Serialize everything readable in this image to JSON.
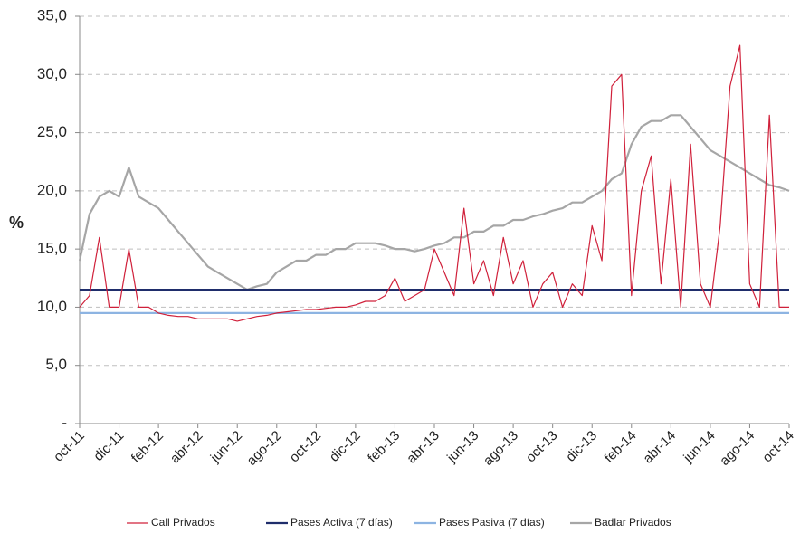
{
  "chart_data": {
    "type": "line",
    "y_label": "%",
    "categories": [
      "oct-11",
      null,
      null,
      null,
      "dic-11",
      null,
      null,
      null,
      "feb-12",
      null,
      null,
      null,
      "abr-12",
      null,
      null,
      null,
      "jun-12",
      null,
      null,
      null,
      "ago-12",
      null,
      null,
      null,
      "oct-12",
      null,
      null,
      null,
      "dic-12",
      null,
      null,
      null,
      "feb-13",
      null,
      null,
      null,
      "abr-13",
      null,
      null,
      null,
      "jun-13",
      null,
      null,
      null,
      "ago-13",
      null,
      null,
      null,
      "oct-13",
      null,
      null,
      null,
      "dic-13",
      null,
      null,
      null,
      "feb-14",
      null,
      null,
      null,
      "abr-14",
      null,
      null,
      null,
      "jun-14",
      null,
      null,
      null,
      "ago-14",
      null,
      null,
      null,
      "oct-14"
    ],
    "ylim": [
      0,
      35
    ],
    "yticks": [
      {
        "value": 0,
        "label": "-"
      },
      {
        "value": 5,
        "label": "5,0"
      },
      {
        "value": 10,
        "label": "10,0"
      },
      {
        "value": 15,
        "label": "15,0"
      },
      {
        "value": 20,
        "label": "20,0"
      },
      {
        "value": 25,
        "label": "25,0"
      },
      {
        "value": 30,
        "label": "30,0"
      },
      {
        "value": 35,
        "label": "35,0"
      }
    ],
    "grid": true,
    "series": [
      {
        "name": "Call Privados",
        "color": "#d0203a",
        "width": 1.2,
        "values": [
          10,
          11,
          16,
          10,
          10,
          15,
          10,
          10,
          9.5,
          9.3,
          9.2,
          9.2,
          9,
          9,
          9,
          9,
          8.8,
          9,
          9.2,
          9.3,
          9.5,
          9.6,
          9.7,
          9.8,
          9.8,
          9.9,
          10,
          10,
          10.2,
          10.5,
          10.5,
          11,
          12.5,
          10.5,
          11,
          11.5,
          15,
          13,
          11,
          18.5,
          12,
          14,
          11,
          16,
          12,
          14,
          10,
          12,
          13,
          10,
          12,
          11,
          17,
          14,
          29,
          30,
          11,
          20,
          23,
          12,
          21,
          10,
          24,
          12,
          10,
          17,
          29,
          32.5,
          12,
          10,
          26.5,
          10,
          10
        ]
      },
      {
        "name": "Pases Activa (7 días)",
        "color": "#1f2d6b",
        "width": 2.2,
        "values": [
          11.5,
          11.5,
          11.5,
          11.5,
          11.5,
          11.5,
          11.5,
          11.5,
          11.5,
          11.5,
          11.5,
          11.5,
          11.5,
          11.5,
          11.5,
          11.5,
          11.5,
          11.5,
          11.5,
          11.5,
          11.5,
          11.5,
          11.5,
          11.5,
          11.5,
          11.5,
          11.5,
          11.5,
          11.5,
          11.5,
          11.5,
          11.5,
          11.5,
          11.5,
          11.5,
          11.5,
          11.5,
          11.5,
          11.5,
          11.5,
          11.5,
          11.5,
          11.5,
          11.5,
          11.5,
          11.5,
          11.5,
          11.5,
          11.5,
          11.5,
          11.5,
          11.5,
          11.5,
          11.5,
          11.5,
          11.5,
          11.5,
          11.5,
          11.5,
          11.5,
          11.5,
          11.5,
          11.5,
          11.5,
          11.5,
          11.5,
          11.5,
          11.5,
          11.5,
          11.5,
          11.5,
          11.5,
          11.5
        ]
      },
      {
        "name": "Pases Pasiva (7 días)",
        "color": "#8db4e2",
        "width": 2.2,
        "values": [
          9.5,
          9.5,
          9.5,
          9.5,
          9.5,
          9.5,
          9.5,
          9.5,
          9.5,
          9.5,
          9.5,
          9.5,
          9.5,
          9.5,
          9.5,
          9.5,
          9.5,
          9.5,
          9.5,
          9.5,
          9.5,
          9.5,
          9.5,
          9.5,
          9.5,
          9.5,
          9.5,
          9.5,
          9.5,
          9.5,
          9.5,
          9.5,
          9.5,
          9.5,
          9.5,
          9.5,
          9.5,
          9.5,
          9.5,
          9.5,
          9.5,
          9.5,
          9.5,
          9.5,
          9.5,
          9.5,
          9.5,
          9.5,
          9.5,
          9.5,
          9.5,
          9.5,
          9.5,
          9.5,
          9.5,
          9.5,
          9.5,
          9.5,
          9.5,
          9.5,
          9.5,
          9.5,
          9.5,
          9.5,
          9.5,
          9.5,
          9.5,
          9.5,
          9.5,
          9.5,
          9.5,
          9.5,
          9.5
        ]
      },
      {
        "name": "Badlar Privados",
        "color": "#a6a6a6",
        "width": 2.2,
        "values": [
          14,
          18,
          19.5,
          20,
          19.5,
          22,
          19.5,
          19,
          18.5,
          17.5,
          16.5,
          15.5,
          14.5,
          13.5,
          13,
          12.5,
          12,
          11.5,
          11.8,
          12,
          13,
          13.5,
          14,
          14,
          14.5,
          14.5,
          15,
          15,
          15.5,
          15.5,
          15.5,
          15.3,
          15,
          15,
          14.8,
          15,
          15.3,
          15.5,
          16,
          16,
          16.5,
          16.5,
          17,
          17,
          17.5,
          17.5,
          17.8,
          18,
          18.3,
          18.5,
          19,
          19,
          19.5,
          20,
          21,
          21.5,
          24,
          25.5,
          26,
          26,
          26.5,
          26.5,
          25.5,
          24.5,
          23.5,
          23,
          22.5,
          22,
          21.5,
          21,
          20.5,
          20.3,
          20
        ]
      }
    ]
  }
}
